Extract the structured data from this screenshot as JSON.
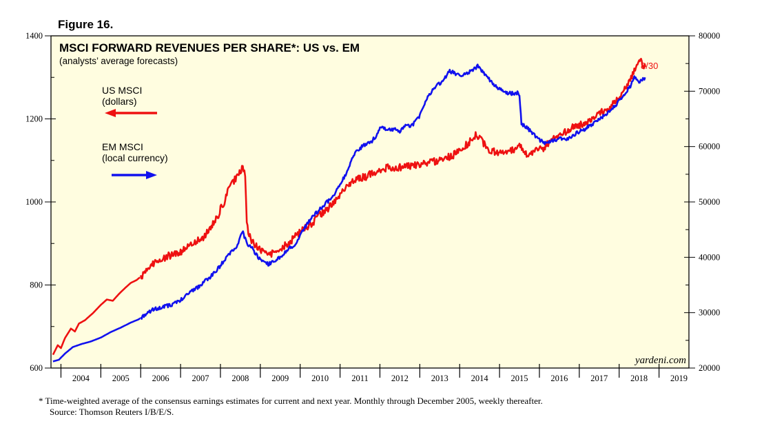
{
  "figure_label": "Figure 16.",
  "chart_data": {
    "type": "line",
    "title": "MSCI FORWARD REVENUES PER SHARE*: US vs. EM",
    "subtitle": "(analysts’ average forecasts)",
    "x_range": [
      2003.75,
      2019.75
    ],
    "x_tick_labels": [
      "2004",
      "2005",
      "2006",
      "2007",
      "2008",
      "2009",
      "2010",
      "2011",
      "2012",
      "2013",
      "2014",
      "2015",
      "2016",
      "2017",
      "2018",
      "2019"
    ],
    "y_left": {
      "range": [
        600,
        1400
      ],
      "ticks": [
        600,
        800,
        1000,
        1200,
        1400
      ],
      "tick_labels": [
        "600",
        "800",
        "1000",
        "1200",
        "1400"
      ]
    },
    "y_right": {
      "range": [
        20000,
        80000
      ],
      "ticks": [
        20000,
        30000,
        40000,
        50000,
        60000,
        70000,
        80000
      ],
      "tick_labels": [
        "20000",
        "30000",
        "40000",
        "50000",
        "60000",
        "70000",
        "80000"
      ]
    },
    "series": [
      {
        "name": "US MSCI",
        "label_lines": [
          "US MSCI",
          "(dollars)"
        ],
        "axis": "left",
        "color": "#ee1111",
        "arrow": "left",
        "end_label": "8/30",
        "points": [
          [
            2003.8,
            632
          ],
          [
            2003.92,
            655
          ],
          [
            2004.0,
            648
          ],
          [
            2004.1,
            672
          ],
          [
            2004.25,
            695
          ],
          [
            2004.35,
            688
          ],
          [
            2004.45,
            707
          ],
          [
            2004.6,
            715
          ],
          [
            2004.8,
            732
          ],
          [
            2005.0,
            752
          ],
          [
            2005.15,
            765
          ],
          [
            2005.3,
            762
          ],
          [
            2005.45,
            778
          ],
          [
            2005.6,
            792
          ],
          [
            2005.75,
            805
          ],
          [
            2005.9,
            812
          ],
          [
            2006.0,
            820
          ],
          [
            2006.1,
            828
          ],
          [
            2006.25,
            848
          ],
          [
            2006.4,
            856
          ],
          [
            2006.55,
            862
          ],
          [
            2006.7,
            870
          ],
          [
            2006.9,
            878
          ],
          [
            2007.0,
            880
          ],
          [
            2007.2,
            892
          ],
          [
            2007.4,
            905
          ],
          [
            2007.55,
            912
          ],
          [
            2007.7,
            930
          ],
          [
            2007.85,
            952
          ],
          [
            2007.95,
            968
          ],
          [
            2008.0,
            982
          ],
          [
            2008.1,
            1000
          ],
          [
            2008.2,
            1030
          ],
          [
            2008.3,
            1045
          ],
          [
            2008.4,
            1060
          ],
          [
            2008.5,
            1072
          ],
          [
            2008.56,
            1082
          ],
          [
            2008.62,
            1060
          ],
          [
            2008.66,
            950
          ],
          [
            2008.72,
            920
          ],
          [
            2008.8,
            905
          ],
          [
            2008.9,
            892
          ],
          [
            2009.0,
            885
          ],
          [
            2009.1,
            880
          ],
          [
            2009.2,
            872
          ],
          [
            2009.3,
            875
          ],
          [
            2009.4,
            885
          ],
          [
            2009.5,
            880
          ],
          [
            2009.6,
            893
          ],
          [
            2009.75,
            905
          ],
          [
            2009.9,
            918
          ],
          [
            2010.0,
            928
          ],
          [
            2010.15,
            940
          ],
          [
            2010.3,
            948
          ],
          [
            2010.5,
            968
          ],
          [
            2010.7,
            985
          ],
          [
            2010.9,
            1005
          ],
          [
            2011.0,
            1020
          ],
          [
            2011.2,
            1040
          ],
          [
            2011.35,
            1050
          ],
          [
            2011.5,
            1058
          ],
          [
            2011.65,
            1060
          ],
          [
            2011.8,
            1070
          ],
          [
            2012.0,
            1078
          ],
          [
            2012.2,
            1082
          ],
          [
            2012.4,
            1080
          ],
          [
            2012.6,
            1085
          ],
          [
            2012.8,
            1088
          ],
          [
            2013.0,
            1090
          ],
          [
            2013.2,
            1094
          ],
          [
            2013.4,
            1098
          ],
          [
            2013.6,
            1105
          ],
          [
            2013.8,
            1110
          ],
          [
            2014.0,
            1125
          ],
          [
            2014.2,
            1140
          ],
          [
            2014.3,
            1150
          ],
          [
            2014.4,
            1160
          ],
          [
            2014.5,
            1155
          ],
          [
            2014.6,
            1140
          ],
          [
            2014.7,
            1130
          ],
          [
            2014.8,
            1122
          ],
          [
            2015.0,
            1118
          ],
          [
            2015.2,
            1122
          ],
          [
            2015.4,
            1128
          ],
          [
            2015.5,
            1135
          ],
          [
            2015.6,
            1122
          ],
          [
            2015.7,
            1116
          ],
          [
            2015.8,
            1120
          ],
          [
            2015.9,
            1124
          ],
          [
            2016.0,
            1126
          ],
          [
            2016.1,
            1130
          ],
          [
            2016.2,
            1140
          ],
          [
            2016.3,
            1152
          ],
          [
            2016.4,
            1158
          ],
          [
            2016.5,
            1162
          ],
          [
            2016.6,
            1165
          ],
          [
            2016.7,
            1170
          ],
          [
            2016.85,
            1180
          ],
          [
            2017.0,
            1185
          ],
          [
            2017.15,
            1192
          ],
          [
            2017.3,
            1200
          ],
          [
            2017.45,
            1210
          ],
          [
            2017.6,
            1218
          ],
          [
            2017.75,
            1225
          ],
          [
            2017.9,
            1240
          ],
          [
            2018.0,
            1250
          ],
          [
            2018.1,
            1268
          ],
          [
            2018.2,
            1285
          ],
          [
            2018.3,
            1300
          ],
          [
            2018.4,
            1318
          ],
          [
            2018.5,
            1335
          ],
          [
            2018.55,
            1342
          ],
          [
            2018.6,
            1328
          ],
          [
            2018.66,
            1325
          ]
        ]
      },
      {
        "name": "EM MSCI",
        "label_lines": [
          "EM MSCI",
          "(local currency)"
        ],
        "axis": "right",
        "color": "#1111ee",
        "arrow": "right",
        "points": [
          [
            2003.8,
            21200
          ],
          [
            2003.95,
            21500
          ],
          [
            2004.1,
            22600
          ],
          [
            2004.3,
            23800
          ],
          [
            2004.5,
            24300
          ],
          [
            2004.75,
            24800
          ],
          [
            2005.0,
            25500
          ],
          [
            2005.25,
            26500
          ],
          [
            2005.5,
            27300
          ],
          [
            2005.75,
            28200
          ],
          [
            2005.95,
            28800
          ],
          [
            2006.1,
            29600
          ],
          [
            2006.3,
            30500
          ],
          [
            2006.55,
            31000
          ],
          [
            2006.8,
            31500
          ],
          [
            2007.0,
            32300
          ],
          [
            2007.2,
            33400
          ],
          [
            2007.45,
            34700
          ],
          [
            2007.6,
            35600
          ],
          [
            2007.8,
            36800
          ],
          [
            2008.0,
            38500
          ],
          [
            2008.2,
            40500
          ],
          [
            2008.35,
            41500
          ],
          [
            2008.45,
            42500
          ],
          [
            2008.55,
            44700
          ],
          [
            2008.6,
            43800
          ],
          [
            2008.68,
            42200
          ],
          [
            2008.78,
            41800
          ],
          [
            2008.9,
            40500
          ],
          [
            2009.0,
            39500
          ],
          [
            2009.2,
            38800
          ],
          [
            2009.35,
            39200
          ],
          [
            2009.5,
            40000
          ],
          [
            2009.7,
            41500
          ],
          [
            2009.9,
            42500
          ],
          [
            2010.0,
            44000
          ],
          [
            2010.2,
            46300
          ],
          [
            2010.4,
            48000
          ],
          [
            2010.6,
            49500
          ],
          [
            2010.8,
            50800
          ],
          [
            2011.0,
            53000
          ],
          [
            2011.2,
            55800
          ],
          [
            2011.3,
            57700
          ],
          [
            2011.45,
            59500
          ],
          [
            2011.6,
            60200
          ],
          [
            2011.8,
            61000
          ],
          [
            2011.95,
            62400
          ],
          [
            2012.0,
            63500
          ],
          [
            2012.2,
            63000
          ],
          [
            2012.4,
            63200
          ],
          [
            2012.5,
            62800
          ],
          [
            2012.6,
            63700
          ],
          [
            2012.8,
            63800
          ],
          [
            2012.95,
            65000
          ],
          [
            2013.0,
            65500
          ],
          [
            2013.2,
            69200
          ],
          [
            2013.4,
            70800
          ],
          [
            2013.6,
            72000
          ],
          [
            2013.75,
            73600
          ],
          [
            2013.9,
            73200
          ],
          [
            2014.0,
            72800
          ],
          [
            2014.2,
            73300
          ],
          [
            2014.35,
            74000
          ],
          [
            2014.45,
            74500
          ],
          [
            2014.55,
            73800
          ],
          [
            2014.7,
            72500
          ],
          [
            2014.85,
            71300
          ],
          [
            2015.0,
            70400
          ],
          [
            2015.15,
            69800
          ],
          [
            2015.3,
            69600
          ],
          [
            2015.45,
            69700
          ],
          [
            2015.5,
            68900
          ],
          [
            2015.55,
            64100
          ],
          [
            2015.7,
            63300
          ],
          [
            2015.9,
            61900
          ],
          [
            2016.0,
            61200
          ],
          [
            2016.15,
            60600
          ],
          [
            2016.3,
            61000
          ],
          [
            2016.5,
            61400
          ],
          [
            2016.7,
            61400
          ],
          [
            2016.85,
            62000
          ],
          [
            2017.0,
            62700
          ],
          [
            2017.15,
            63200
          ],
          [
            2017.3,
            63900
          ],
          [
            2017.5,
            64800
          ],
          [
            2017.7,
            66100
          ],
          [
            2017.9,
            67300
          ],
          [
            2018.0,
            68400
          ],
          [
            2018.15,
            69700
          ],
          [
            2018.3,
            71100
          ],
          [
            2018.38,
            72700
          ],
          [
            2018.45,
            72300
          ],
          [
            2018.5,
            71700
          ],
          [
            2018.58,
            72000
          ],
          [
            2018.65,
            72500
          ]
        ]
      }
    ],
    "watermark": "yardeni.com",
    "footnote": "*  Time-weighted average of the consensus earnings estimates for current and next year. Monthly through December 2005, weekly thereafter.",
    "source": "Source: Thomson Reuters I/B/E/S."
  }
}
